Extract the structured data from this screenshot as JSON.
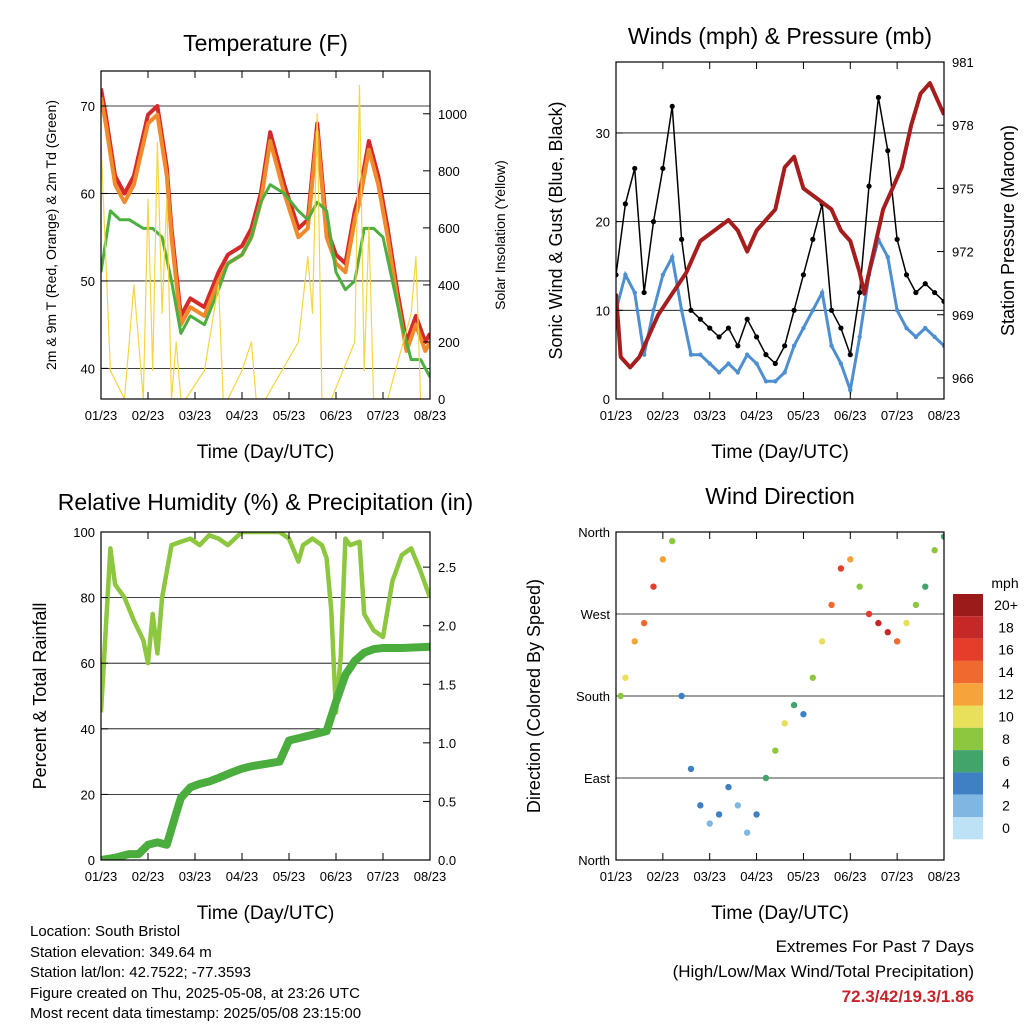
{
  "chart_data": [
    {
      "id": "temperature",
      "type": "line",
      "title": "Temperature (F)",
      "xlabel": "Time (Day/UTC)",
      "ylabel_left": "2m & 9m T (Red, Orange) & 2m Td (Green)",
      "ylabel_right": "Solar Insolation (Yellow)",
      "x_ticks": [
        "01/23",
        "02/23",
        "03/23",
        "04/23",
        "05/23",
        "06/23",
        "07/23",
        "08/23"
      ],
      "ylim_left": [
        36.5,
        74
      ],
      "yticks_left": [
        40,
        50,
        60,
        70
      ],
      "ylim_right": [
        0,
        1150
      ],
      "yticks_right": [
        0,
        200,
        400,
        600,
        800,
        1000
      ],
      "grid": "horizontal",
      "series": [
        {
          "color": "#d42a2a",
          "axis": "left",
          "x": [
            0,
            0.1,
            0.3,
            0.5,
            0.7,
            1.0,
            1.2,
            1.4,
            1.5,
            1.7,
            1.9,
            2.2,
            2.5,
            2.7,
            3.0,
            3.2,
            3.4,
            3.6,
            3.9,
            4.2,
            4.4,
            4.6,
            4.8,
            5.0,
            5.2,
            5.4,
            5.5,
            5.7,
            5.9,
            6.1,
            6.3,
            6.5,
            6.7,
            6.9,
            7.0
          ],
          "y": [
            72,
            69,
            62,
            60,
            62,
            69,
            70,
            63,
            56,
            46,
            48,
            47,
            51,
            53,
            54,
            56,
            60,
            67,
            61,
            56,
            57,
            68,
            56,
            53,
            52,
            58,
            60,
            66,
            62,
            56,
            49,
            43,
            46,
            43,
            44
          ]
        },
        {
          "color": "#f08a2a",
          "axis": "left",
          "x": [
            0,
            0.1,
            0.3,
            0.5,
            0.7,
            1.0,
            1.2,
            1.4,
            1.5,
            1.7,
            1.9,
            2.2,
            2.5,
            2.7,
            3.0,
            3.2,
            3.4,
            3.6,
            3.9,
            4.2,
            4.4,
            4.6,
            4.8,
            5.0,
            5.2,
            5.4,
            5.5,
            5.7,
            5.9,
            6.1,
            6.3,
            6.5,
            6.7,
            6.9,
            7.0
          ],
          "y": [
            71,
            68,
            61,
            59,
            61,
            68,
            69,
            62,
            55,
            45,
            47,
            46,
            50,
            52,
            53,
            55,
            59,
            66,
            60,
            55,
            56,
            67,
            55,
            52,
            51,
            57,
            59,
            65,
            61,
            55,
            48,
            42,
            45,
            42,
            43
          ]
        },
        {
          "color": "#4caf3f",
          "axis": "left",
          "x": [
            0,
            0.2,
            0.4,
            0.6,
            0.9,
            1.1,
            1.3,
            1.5,
            1.7,
            1.9,
            2.2,
            2.5,
            2.7,
            3.0,
            3.2,
            3.4,
            3.6,
            3.9,
            4.2,
            4.4,
            4.6,
            4.8,
            5.0,
            5.2,
            5.4,
            5.6,
            5.8,
            6.0,
            6.2,
            6.4,
            6.6,
            6.8,
            7.0
          ],
          "y": [
            51,
            58,
            57,
            57,
            56,
            56,
            55,
            50,
            44,
            46,
            45,
            49,
            52,
            53,
            55,
            59,
            61,
            60,
            58,
            57,
            59,
            58,
            51,
            49,
            50,
            56,
            56,
            55,
            50,
            45,
            41,
            41,
            39
          ]
        },
        {
          "color": "#f4d641",
          "axis": "right",
          "x": [
            0,
            0.2,
            0.5,
            0.7,
            0.9,
            1.0,
            1.1,
            1.2,
            1.3,
            1.4,
            1.5,
            1.6,
            1.7,
            1.8,
            2.2,
            2.5,
            2.6,
            2.7,
            3.0,
            3.2,
            3.3,
            3.5,
            4.2,
            4.4,
            4.5,
            4.6,
            4.7,
            4.9,
            5.4,
            5.5,
            5.6,
            5.7,
            5.8,
            6.1,
            6.6,
            6.7,
            6.8
          ],
          "y": [
            900,
            100,
            0,
            400,
            0,
            700,
            100,
            900,
            300,
            700,
            0,
            200,
            0,
            0,
            100,
            400,
            0,
            0,
            100,
            200,
            0,
            0,
            200,
            500,
            300,
            1000,
            0,
            0,
            200,
            1100,
            100,
            600,
            0,
            0,
            300,
            500,
            0
          ]
        }
      ]
    },
    {
      "id": "winds",
      "type": "scatter",
      "title": "Winds (mph) & Pressure (mb)",
      "xlabel": "Time (Day/UTC)",
      "ylabel_left": "Sonic Wind & Gust (Blue, Black)",
      "ylabel_right": "Station Pressure (Maroon)",
      "x_ticks": [
        "01/23",
        "02/23",
        "03/23",
        "04/23",
        "05/23",
        "06/23",
        "07/23",
        "08/23"
      ],
      "ylim_left": [
        0,
        38
      ],
      "yticks_left": [
        0,
        10,
        20,
        30
      ],
      "ylim_right": [
        965,
        981
      ],
      "yticks_right": [
        966,
        969,
        972,
        975,
        978,
        981
      ],
      "grid": "horizontal",
      "series": [
        {
          "color": "#000000",
          "axis": "left",
          "kind": "points",
          "x": [
            0,
            0.2,
            0.4,
            0.6,
            0.8,
            1.0,
            1.2,
            1.4,
            1.6,
            1.8,
            2.0,
            2.2,
            2.4,
            2.6,
            2.8,
            3.0,
            3.2,
            3.4,
            3.6,
            3.8,
            4.0,
            4.2,
            4.4,
            4.6,
            4.8,
            5.0,
            5.2,
            5.4,
            5.6,
            5.8,
            6.0,
            6.2,
            6.4,
            6.6,
            6.8,
            7.0
          ],
          "y": [
            14,
            22,
            26,
            12,
            20,
            26,
            33,
            18,
            10,
            9,
            8,
            7,
            8,
            6,
            9,
            7,
            5,
            4,
            6,
            10,
            14,
            18,
            22,
            10,
            8,
            5,
            12,
            24,
            34,
            28,
            18,
            14,
            12,
            13,
            12,
            11
          ]
        },
        {
          "color": "#4d8fd0",
          "axis": "left",
          "kind": "points",
          "x": [
            0,
            0.2,
            0.4,
            0.6,
            0.8,
            1.0,
            1.2,
            1.4,
            1.6,
            1.8,
            2.0,
            2.2,
            2.4,
            2.6,
            2.8,
            3.0,
            3.2,
            3.4,
            3.6,
            3.8,
            4.0,
            4.2,
            4.4,
            4.6,
            4.8,
            5.0,
            5.2,
            5.4,
            5.6,
            5.8,
            6.0,
            6.2,
            6.4,
            6.6,
            6.8,
            7.0
          ],
          "y": [
            10,
            14,
            12,
            5,
            10,
            14,
            16,
            10,
            5,
            5,
            4,
            3,
            4,
            3,
            5,
            4,
            2,
            2,
            3,
            6,
            8,
            10,
            12,
            6,
            4,
            1,
            7,
            14,
            18,
            16,
            10,
            8,
            7,
            8,
            7,
            6
          ]
        },
        {
          "color": "#a51d1d",
          "axis": "right",
          "kind": "line",
          "x": [
            0,
            0.1,
            0.3,
            0.5,
            0.7,
            0.9,
            1.2,
            1.5,
            1.8,
            2.1,
            2.4,
            2.6,
            2.8,
            3.0,
            3.2,
            3.4,
            3.6,
            3.8,
            4.0,
            4.3,
            4.6,
            4.8,
            5.0,
            5.2,
            5.3,
            5.5,
            5.7,
            5.9,
            6.1,
            6.3,
            6.5,
            6.7,
            6.9,
            7.0
          ],
          "y": [
            970,
            967,
            966.5,
            967,
            968,
            969,
            970,
            971,
            972.5,
            973,
            973.5,
            973,
            972,
            973,
            973.5,
            974,
            976,
            976.5,
            975,
            974.5,
            974,
            973,
            972.5,
            971,
            970,
            972,
            974,
            975,
            976,
            978,
            979.5,
            980,
            979,
            978.5
          ]
        }
      ]
    },
    {
      "id": "humidity",
      "type": "line",
      "title": "Relative Humidity (%) & Precipitation (in)",
      "xlabel": "Time (Day/UTC)",
      "ylabel_left": "Percent & Total Rainfall",
      "x_ticks": [
        "01/23",
        "02/23",
        "03/23",
        "04/23",
        "05/23",
        "06/23",
        "07/23",
        "08/23"
      ],
      "ylim_left": [
        0,
        100
      ],
      "yticks_left": [
        0,
        20,
        40,
        60,
        80,
        100
      ],
      "ylim_right": [
        0,
        2.8
      ],
      "yticks_right": [
        "0.0",
        "0.5",
        "1.0",
        "1.5",
        "2.0",
        "2.5"
      ],
      "grid": "horizontal",
      "series": [
        {
          "color": "#8dc63f",
          "axis": "left",
          "x": [
            0,
            0.1,
            0.2,
            0.3,
            0.5,
            0.7,
            0.9,
            1.0,
            1.1,
            1.2,
            1.3,
            1.5,
            1.7,
            1.9,
            2.1,
            2.3,
            2.5,
            2.7,
            3.0,
            3.2,
            3.5,
            3.8,
            4.0,
            4.2,
            4.3,
            4.5,
            4.7,
            4.8,
            4.9,
            5.0,
            5.1,
            5.2,
            5.3,
            5.5,
            5.6,
            5.8,
            6.0,
            6.2,
            6.4,
            6.6,
            6.8,
            6.9,
            7.0
          ],
          "y": [
            45,
            70,
            95,
            84,
            80,
            73,
            67,
            60,
            75,
            63,
            80,
            96,
            97,
            98,
            96,
            99,
            98,
            96,
            100,
            100,
            100,
            100,
            98,
            91,
            96,
            98,
            96,
            92,
            76,
            45,
            62,
            98,
            96,
            97,
            75,
            70,
            68,
            85,
            93,
            95,
            88,
            84,
            80
          ]
        },
        {
          "color": "#4aad3e",
          "axis": "right",
          "x": [
            0,
            0.3,
            0.6,
            0.8,
            1.0,
            1.2,
            1.4,
            1.6,
            1.7,
            1.9,
            2.1,
            2.3,
            2.5,
            2.8,
            3.0,
            3.2,
            3.5,
            3.8,
            4.0,
            4.2,
            4.5,
            4.8,
            5.0,
            5.2,
            5.4,
            5.6,
            5.8,
            6.0,
            6.4,
            7.0
          ],
          "y": [
            0.0,
            0.02,
            0.05,
            0.05,
            0.13,
            0.15,
            0.13,
            0.4,
            0.53,
            0.62,
            0.65,
            0.67,
            0.7,
            0.75,
            0.78,
            0.8,
            0.82,
            0.84,
            1.02,
            1.04,
            1.07,
            1.1,
            1.35,
            1.58,
            1.7,
            1.77,
            1.8,
            1.81,
            1.81,
            1.82
          ]
        }
      ]
    },
    {
      "id": "wind_direction",
      "type": "scatter",
      "title": "Wind Direction",
      "xlabel": "Time (Day/UTC)",
      "ylabel_left": "Direction (Colored By Speed)",
      "x_ticks": [
        "01/23",
        "02/23",
        "03/23",
        "04/23",
        "05/23",
        "06/23",
        "07/23",
        "08/23"
      ],
      "y_ticks": [
        "North",
        "East",
        "South",
        "West",
        "North"
      ],
      "ylim": [
        0,
        360
      ],
      "grid": "horizontal",
      "colorbar": {
        "title": "mph",
        "labels": [
          "20+",
          "18",
          "16",
          "14",
          "12",
          "10",
          "8",
          "6",
          "4",
          "2",
          "0"
        ],
        "colors": [
          "#9b1b1b",
          "#c62828",
          "#e53d2a",
          "#f06a30",
          "#f6a33c",
          "#e8df5a",
          "#8dc63f",
          "#42a36b",
          "#3f7fc4",
          "#7fb6e2",
          "#bde1f5"
        ]
      },
      "series": [
        {
          "name": "direction",
          "x": [
            0.1,
            0.2,
            0.4,
            0.6,
            0.8,
            1.0,
            1.2,
            1.4,
            1.6,
            1.8,
            2.0,
            2.2,
            2.4,
            2.6,
            2.8,
            3.0,
            3.2,
            3.4,
            3.6,
            3.8,
            4.0,
            4.2,
            4.4,
            4.6,
            4.8,
            5.0,
            5.2,
            5.4,
            5.6,
            5.8,
            6.0,
            6.2,
            6.4,
            6.6,
            6.8,
            7.0
          ],
          "y": [
            180,
            200,
            240,
            260,
            300,
            330,
            350,
            180,
            100,
            60,
            40,
            50,
            80,
            60,
            30,
            50,
            90,
            120,
            150,
            170,
            160,
            200,
            240,
            280,
            320,
            330,
            300,
            270,
            260,
            250,
            240,
            260,
            280,
            300,
            340,
            355
          ],
          "speed": [
            8,
            10,
            12,
            14,
            16,
            12,
            8,
            4,
            4,
            4,
            2,
            4,
            4,
            2,
            2,
            4,
            6,
            8,
            10,
            6,
            4,
            8,
            10,
            14,
            16,
            12,
            8,
            16,
            18,
            18,
            14,
            10,
            8,
            6,
            8,
            6
          ]
        }
      ]
    }
  ],
  "footer": {
    "location": "Location: South Bristol",
    "elevation": "Station elevation: 349.64 m",
    "latlon": "Station lat/lon: 42.7522; -77.3593",
    "created": "Figure created on Thu, 2025-05-08, at 23:26 UTC",
    "recent": "Most recent data timestamp: 2025/05/08 23:15:00"
  },
  "extremes": {
    "heading": "Extremes For Past 7 Days",
    "legend": "(High/Low/Max Wind/Total Precipitation)",
    "values": "72.3/42/19.3/1.86"
  }
}
